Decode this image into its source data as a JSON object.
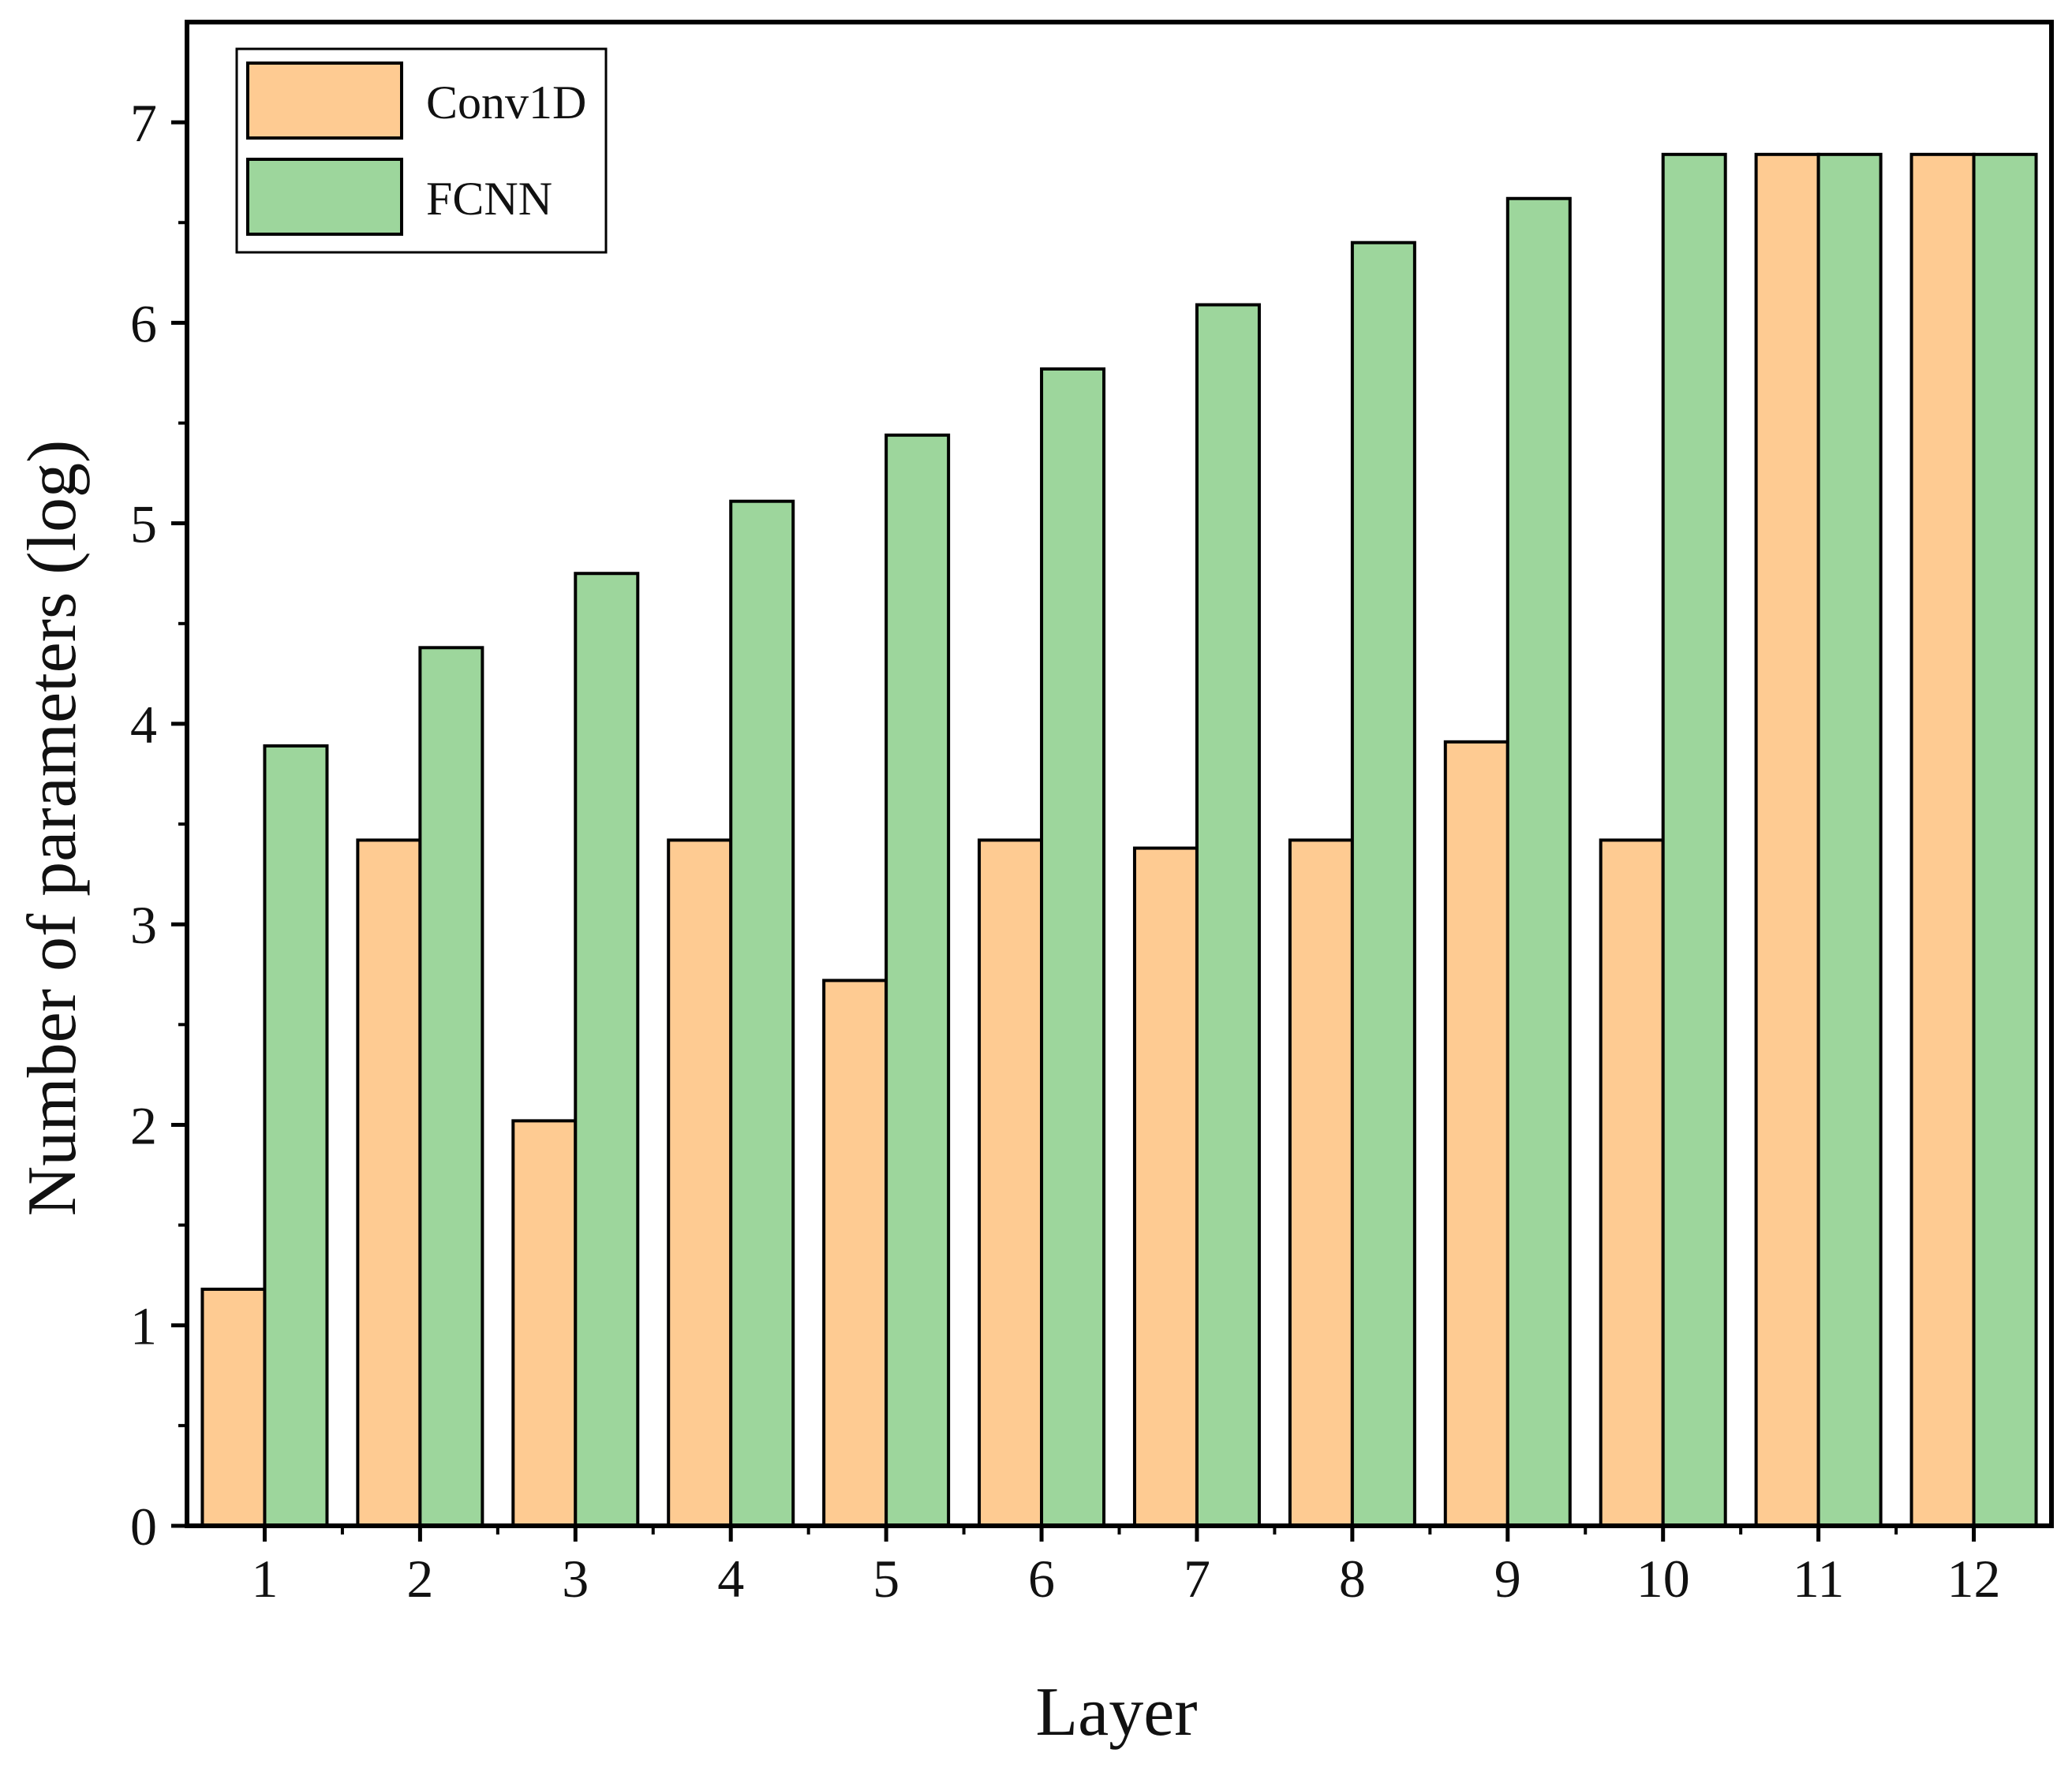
{
  "chart_data": {
    "type": "bar",
    "xlabel": "Layer",
    "ylabel": "Number of parameters (log)",
    "categories": [
      "1",
      "2",
      "3",
      "4",
      "5",
      "6",
      "7",
      "8",
      "9",
      "10",
      "11",
      "12"
    ],
    "series": [
      {
        "name": "Conv1D",
        "color": "#FECB92",
        "values": [
          1.18,
          3.42,
          2.02,
          3.42,
          2.72,
          3.42,
          3.38,
          3.42,
          3.91,
          3.42,
          6.84,
          6.84
        ]
      },
      {
        "name": "FCNN",
        "color": "#9DD69C",
        "values": [
          3.89,
          4.38,
          4.75,
          5.11,
          5.44,
          5.77,
          6.09,
          6.4,
          6.62,
          6.84,
          6.84,
          6.84
        ]
      }
    ],
    "ylim": [
      0,
      7.5
    ],
    "yticks": [
      0,
      1,
      2,
      3,
      4,
      5,
      6,
      7
    ],
    "grid": false,
    "legend_position": "top-left"
  }
}
